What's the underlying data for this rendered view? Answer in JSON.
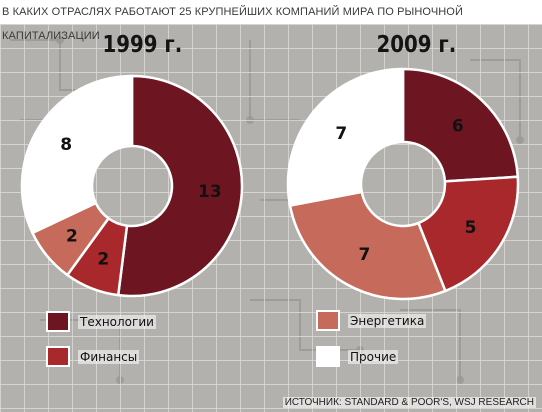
{
  "title": "В КАКИХ ОТРАСЛЯХ РАБОТАЮТ 25 КРУПНЕЙШИХ КОМПАНИЙ МИРА ПО РЫНОЧНОЙ КАПИТАЛИЗАЦИИ",
  "source": "ИСТОЧНИК: STANDARD & POOR'S, WSJ RESEARCH",
  "legend": [
    {
      "label": "Технологии",
      "color": "#6d1621"
    },
    {
      "label": "Финансы",
      "color": "#a8282b"
    },
    {
      "label": "Энергетика",
      "color": "#c66b5b"
    },
    {
      "label": "Прочие",
      "color": "#ffffff"
    }
  ],
  "chart_data": [
    {
      "type": "pie",
      "title": "1999 г.",
      "categories": [
        "Технологии",
        "Финансы",
        "Энергетика",
        "Прочие"
      ],
      "values": [
        13,
        2,
        2,
        8
      ],
      "colors": [
        "#6d1621",
        "#a8282b",
        "#c66b5b",
        "#ffffff"
      ]
    },
    {
      "type": "pie",
      "title": "2009 г.",
      "categories": [
        "Технологии",
        "Финансы",
        "Энергетика",
        "Прочие"
      ],
      "values": [
        6,
        5,
        7,
        7
      ],
      "colors": [
        "#6d1621",
        "#a8282b",
        "#c66b5b",
        "#ffffff"
      ]
    }
  ]
}
